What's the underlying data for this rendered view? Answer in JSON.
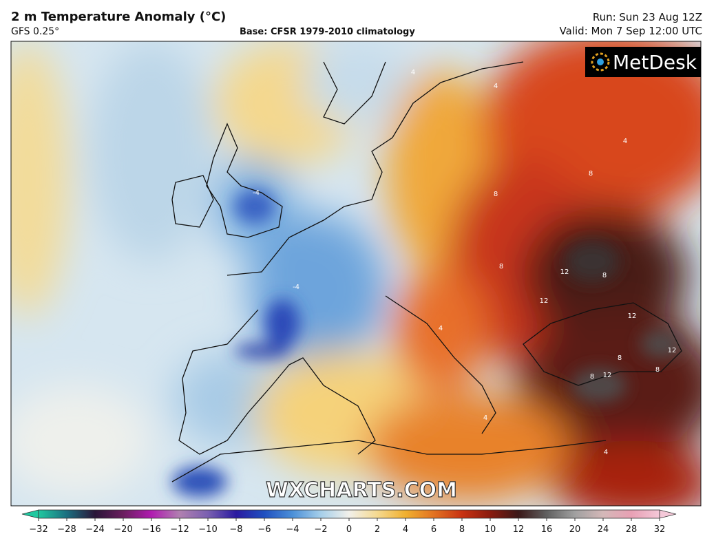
{
  "header": {
    "title": "2 m Temperature Anomaly (°C)",
    "model": "GFS 0.25°",
    "base": "Base: CFSR 1979-2010 climatology",
    "run": "Run: Sun 23 Aug 12Z",
    "valid": "Valid: Mon 7 Sep 12:00 UTC"
  },
  "logo": "MetDesk",
  "watermark": "WXCHARTS.COM",
  "contour_labels": [
    4,
    4,
    -4,
    -4,
    4,
    8,
    8,
    8,
    12,
    8,
    12,
    12,
    12,
    8,
    4,
    8,
    8,
    4,
    12,
    4
  ],
  "colorbar": {
    "ticks": [
      {
        "value": -32,
        "label": "−32"
      },
      {
        "value": -28,
        "label": "−28"
      },
      {
        "value": -24,
        "label": "−24"
      },
      {
        "value": -20,
        "label": "−20"
      },
      {
        "value": -16,
        "label": "−16"
      },
      {
        "value": -12,
        "label": "−12"
      },
      {
        "value": -10,
        "label": "−10"
      },
      {
        "value": -8,
        "label": "−8"
      },
      {
        "value": -6,
        "label": "−6"
      },
      {
        "value": -4,
        "label": "−4"
      },
      {
        "value": -2,
        "label": "−2"
      },
      0,
      2,
      4,
      6,
      8,
      10,
      12,
      16,
      20,
      24,
      28,
      32
    ],
    "colors": [
      "#20c8a0",
      "#1b6f80",
      "#2a1638",
      "#6a1e5e",
      "#b01cb0",
      "#b080b0",
      "#7a60b0",
      "#2a1aa0",
      "#2050c0",
      "#4c90d8",
      "#a6cfea",
      "#f2f0ea",
      "#f5d990",
      "#f0b030",
      "#e27222",
      "#c83212",
      "#8a1a0e",
      "#3a1818",
      "#606060",
      "#a0a0a0",
      "#d4b8b8",
      "#e8a0b4",
      "#f4c8d8"
    ]
  }
}
